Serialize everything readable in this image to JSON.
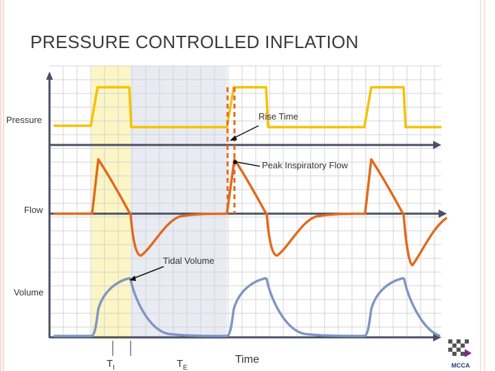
{
  "slide": {
    "title": "PRESSURE CONTROLLED INFLATION"
  },
  "rows": {
    "pressure": "Pressure",
    "flow": "Flow",
    "volume": "Volume"
  },
  "annotations": {
    "rise_time": "Rise Time",
    "peak_flow": "Peak Inspiratory Flow",
    "tidal_volume": "Tidal Volume"
  },
  "axis": {
    "time": "Time",
    "ti_main": "T",
    "ti_sub": "I",
    "te_main": "T",
    "te_sub": "E"
  },
  "colors": {
    "pressure": "#f5c100",
    "flow": "#e06a1e",
    "volume": "#7f96c4",
    "axis": "#4a4f63",
    "grid": "#d3d3d3",
    "inspiration_shade": "#fbf6c4",
    "expiration_shade": "#e9ebf3"
  },
  "logo": {
    "text": "MCCA",
    "icon": "mcca-logo-icon"
  }
}
